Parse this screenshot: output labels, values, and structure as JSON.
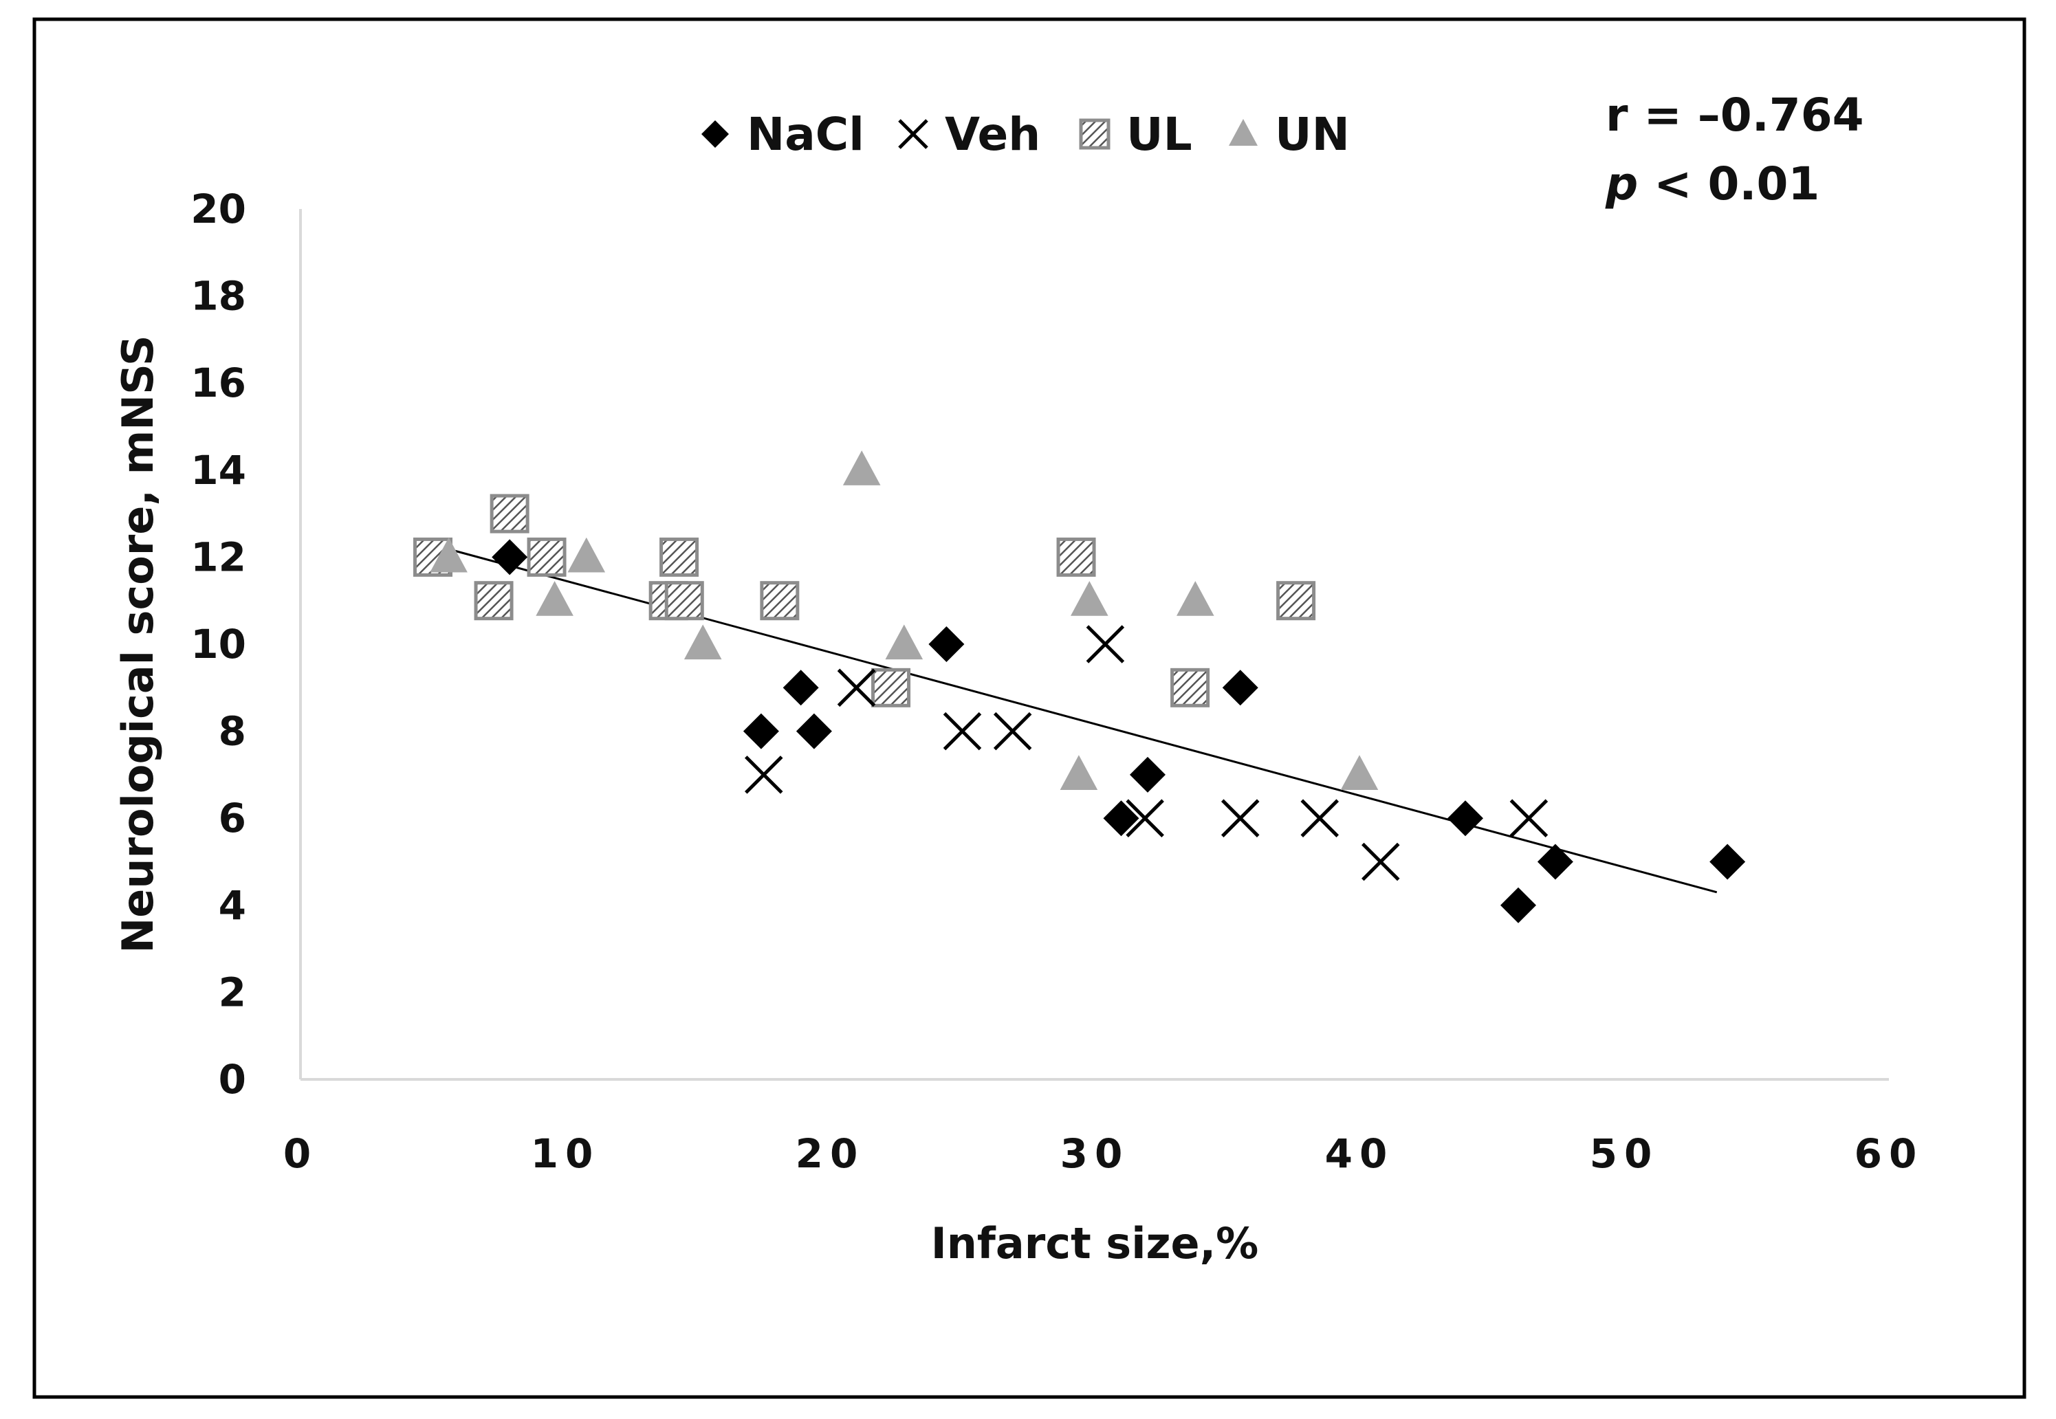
{
  "chart_data": {
    "type": "scatter",
    "xlabel": "Infarct size,%",
    "ylabel": "Neurological score, mNSS",
    "xlim": [
      0,
      60
    ],
    "ylim": [
      0,
      20
    ],
    "xticks": [
      0,
      10,
      20,
      30,
      40,
      50,
      60
    ],
    "yticks": [
      0,
      2,
      4,
      6,
      8,
      10,
      12,
      14,
      16,
      18,
      20
    ],
    "legend_position": "top-center",
    "grid": false,
    "annotation": {
      "r_text": "r = –0.764",
      "p_italic": "p",
      "p_rest": " < 0.01"
    },
    "trendline": {
      "x": [
        5.5,
        53.5
      ],
      "y": [
        12.2,
        4.3
      ]
    },
    "colors": {
      "nacl": "#000000",
      "veh": "#000000",
      "ul": "#8c8c8c",
      "un": "#a6a6a6"
    },
    "series": [
      {
        "name": "NaCl",
        "marker": "diamond",
        "x": [
          7.9,
          17.4,
          18.9,
          19.4,
          24.4,
          31.0,
          32.0,
          35.5,
          44.0,
          46.0,
          47.4,
          53.9
        ],
        "y": [
          12,
          8,
          9,
          8,
          10,
          6,
          7,
          9,
          6,
          4,
          5,
          5
        ]
      },
      {
        "name": "Veh",
        "marker": "cross",
        "x": [
          17.5,
          21.0,
          25.0,
          26.9,
          30.4,
          31.9,
          35.5,
          38.5,
          40.8,
          46.4
        ],
        "y": [
          7,
          9,
          8,
          8,
          10,
          6,
          6,
          6,
          5,
          6
        ]
      },
      {
        "name": "UL",
        "marker": "square",
        "x": [
          5.0,
          7.3,
          7.9,
          9.3,
          13.9,
          14.3,
          14.5,
          18.1,
          22.3,
          29.3,
          33.6,
          37.6
        ],
        "y": [
          12,
          11,
          13,
          12,
          11,
          12,
          11,
          11,
          9,
          12,
          9,
          11
        ]
      },
      {
        "name": "UN",
        "marker": "triangle",
        "x": [
          5.6,
          9.6,
          10.8,
          15.2,
          21.2,
          22.8,
          29.4,
          29.8,
          33.8,
          40.0
        ],
        "y": [
          12,
          11,
          12,
          10,
          14,
          10,
          7,
          11,
          11,
          7
        ]
      }
    ]
  }
}
